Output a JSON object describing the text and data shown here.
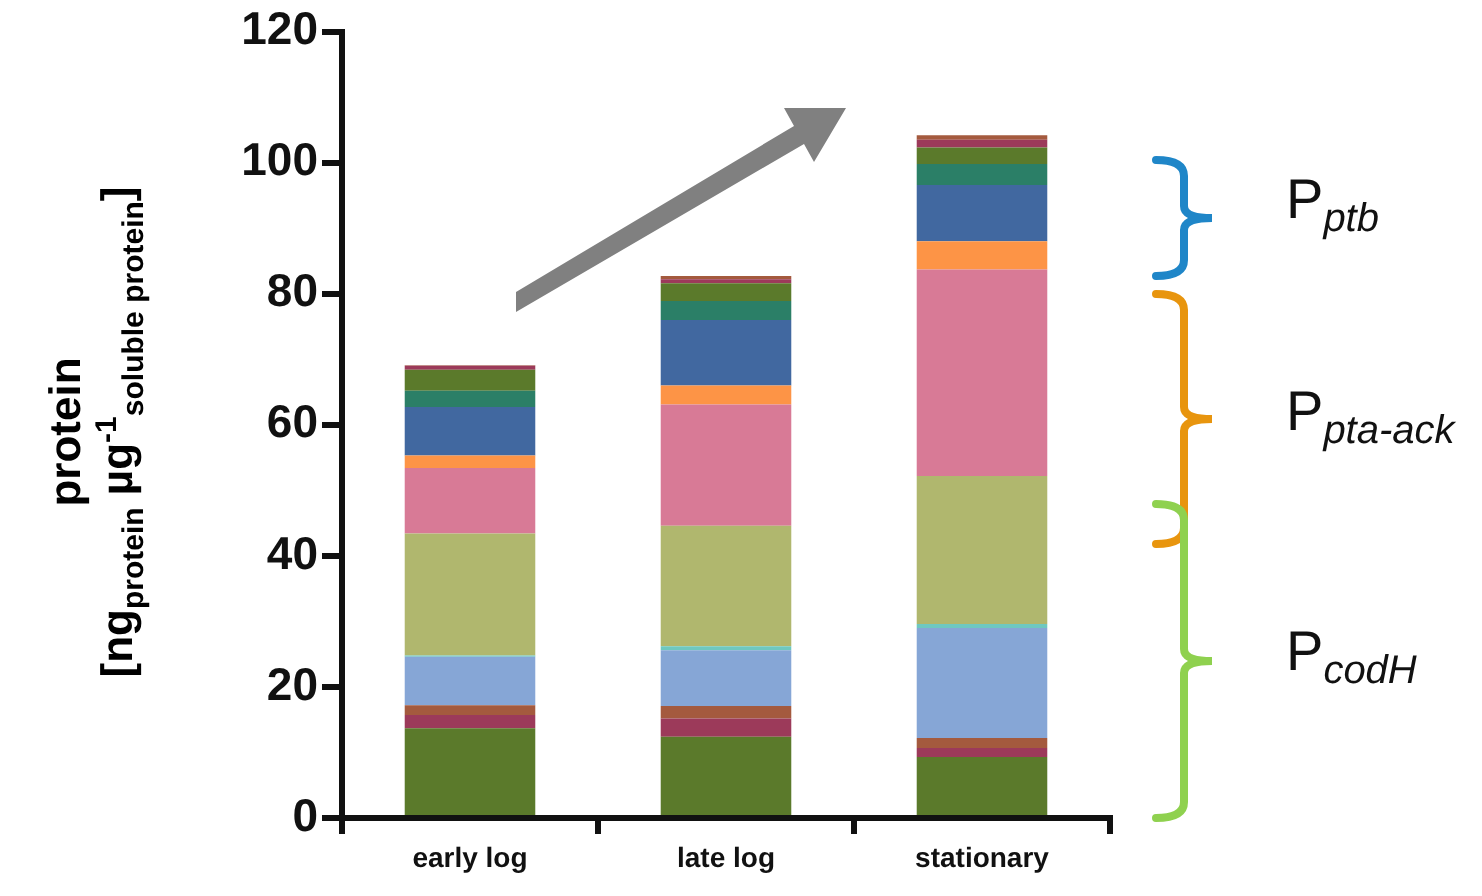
{
  "chart_data": {
    "type": "bar",
    "stacked": true,
    "ylabel": "protein\n[ng$_{protein}$ µg$^{-1}$$_{soluble protein}$]",
    "categories": [
      "early log",
      "late log",
      "stationary"
    ],
    "ylim": [
      0,
      120
    ],
    "yticks": [
      0,
      20,
      40,
      60,
      80,
      100,
      120
    ],
    "grid": false,
    "legend": false,
    "series": [
      {
        "color": "#5b7a2b",
        "values": [
          13.7,
          12.4,
          9.3
        ]
      },
      {
        "color": "#9c3a5a",
        "values": [
          2.0,
          2.8,
          1.4
        ]
      },
      {
        "color": "#a45a3e",
        "values": [
          1.5,
          1.9,
          1.5
        ]
      },
      {
        "color": "#86a6d6",
        "values": [
          7.4,
          8.5,
          16.8
        ]
      },
      {
        "color": "#6ec8c0",
        "values": [
          0.2,
          0.6,
          0.6
        ]
      },
      {
        "color": "#b0b76e",
        "values": [
          18.6,
          18.4,
          22.6
        ]
      },
      {
        "color": "#d87a96",
        "values": [
          10.0,
          18.5,
          31.5
        ]
      },
      {
        "color": "#fd9446",
        "values": [
          1.9,
          2.9,
          4.3
        ]
      },
      {
        "color": "#4168a0",
        "values": [
          7.4,
          10.0,
          8.6
        ]
      },
      {
        "color": "#2b7f67",
        "values": [
          2.5,
          2.9,
          3.2
        ]
      },
      {
        "color": "#5b7a2b",
        "values": [
          3.2,
          2.7,
          2.5
        ]
      },
      {
        "color": "#9c3a5a",
        "values": [
          0.6,
          0.6,
          1.2
        ]
      },
      {
        "color": "#a45a3e",
        "values": [
          0.1,
          0.5,
          0.7
        ]
      }
    ],
    "annotations": [
      "P$_{ptb}$",
      "P$_{pta-ack}$",
      "P$_{codH}$"
    ]
  }
}
